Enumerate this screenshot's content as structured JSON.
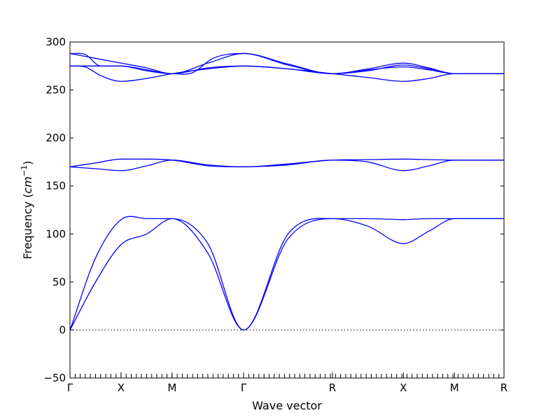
{
  "chart_data": {
    "type": "line",
    "title": "",
    "xlabel": "Wave vector",
    "ylabel_text": "Frequency (",
    "ylabel_unit_base": "cm",
    "ylabel_unit_exp": "−1",
    "ylabel_close": ")",
    "ylim": [
      -50,
      300
    ],
    "yticks": [
      -50,
      0,
      50,
      100,
      150,
      200,
      250,
      300
    ],
    "xlim": [
      0,
      8.5
    ],
    "xticks": [
      {
        "x": 0,
        "label": "Γ"
      },
      {
        "x": 1.0,
        "label": "X"
      },
      {
        "x": 2.0,
        "label": "M"
      },
      {
        "x": 3.4,
        "label": "Γ"
      },
      {
        "x": 5.14,
        "label": "R"
      },
      {
        "x": 6.53,
        "label": "X"
      },
      {
        "x": 7.53,
        "label": "M"
      },
      {
        "x": 8.5,
        "label": "R"
      }
    ],
    "zero_line": true,
    "line_color": "#0000ff",
    "series": [
      {
        "x": [
          0,
          0.5,
          1.0,
          1.5,
          2.0,
          2.7,
          3.4,
          4.27,
          5.14,
          5.84,
          6.53,
          7.03,
          7.53,
          8.0,
          8.5
        ],
        "values": [
          0,
          50,
          89,
          100,
          116,
          80,
          0,
          95,
          116,
          108,
          90,
          103,
          116,
          116,
          116
        ]
      },
      {
        "x": [
          0,
          0.5,
          1.0,
          1.5,
          2.0,
          2.7,
          3.4,
          4.27,
          5.14,
          5.84,
          6.53,
          7.03,
          7.53,
          8.0,
          8.5
        ],
        "values": [
          0,
          75,
          115,
          116,
          116,
          90,
          0,
          100,
          116,
          116,
          115,
          116,
          116,
          116,
          116
        ]
      },
      {
        "x": [
          0,
          0.5,
          1.0,
          1.5,
          2.0,
          2.7,
          3.4,
          4.27,
          5.14,
          5.84,
          6.53,
          7.03,
          7.53,
          8.0,
          8.5
        ],
        "values": [
          170,
          168,
          166,
          171,
          177,
          172,
          170,
          172,
          177,
          175,
          166,
          171,
          177,
          177,
          177
        ]
      },
      {
        "x": [
          0,
          0.5,
          1.0,
          1.5,
          2.0,
          2.7,
          3.4,
          4.27,
          5.14,
          5.84,
          6.53,
          7.03,
          7.53,
          8.0,
          8.5
        ],
        "values": [
          170,
          174,
          178,
          178,
          177,
          171,
          170,
          173,
          177,
          177.5,
          178,
          177.5,
          177,
          177,
          177
        ]
      },
      {
        "x": [
          0,
          0.3,
          0.6,
          1.0,
          1.5,
          2.0,
          2.7,
          3.4,
          4.27,
          5.14,
          5.84,
          6.53,
          7.03,
          7.53,
          8.0,
          8.5
        ],
        "values": [
          275,
          274,
          265,
          259,
          262,
          267,
          272,
          275,
          272,
          267,
          263,
          259,
          262,
          267,
          267,
          267
        ]
      },
      {
        "x": [
          0,
          0.5,
          1.0,
          1.5,
          2.0,
          2.7,
          3.4,
          4.27,
          5.14,
          5.84,
          6.53,
          7.03,
          7.53,
          8.0,
          8.5
        ],
        "values": [
          275,
          275,
          275,
          271,
          267,
          273,
          275,
          272,
          267,
          271,
          274,
          271,
          267,
          267,
          267
        ]
      },
      {
        "x": [
          0,
          0.5,
          1.0,
          1.5,
          2.0,
          2.7,
          3.4,
          4.27,
          5.14,
          5.84,
          6.53,
          7.03,
          7.53,
          8.0,
          8.5
        ],
        "values": [
          288,
          283,
          278,
          273,
          267,
          278,
          288,
          277,
          267,
          272,
          278,
          273,
          267,
          267,
          267
        ]
      },
      {
        "x": [
          0,
          0.3,
          0.6,
          1.0,
          1.5,
          2.0,
          2.4,
          2.8,
          3.4,
          4.27,
          5.14,
          5.84,
          6.53,
          7.03,
          7.53,
          8.0,
          8.5
        ],
        "values": [
          288,
          287,
          275,
          275,
          270,
          267,
          268,
          283,
          288,
          276,
          267,
          270,
          276,
          272,
          267,
          267,
          267
        ]
      }
    ]
  }
}
